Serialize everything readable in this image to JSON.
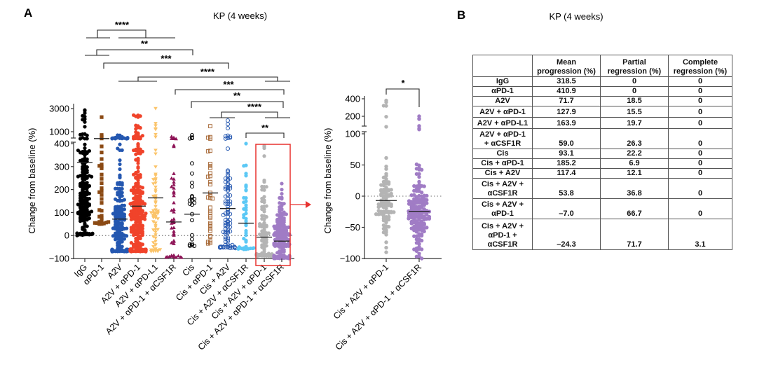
{
  "panel_a": {
    "letter": "A",
    "title": "KP (4 weeks)"
  },
  "panel_b": {
    "letter": "B",
    "title": "KP (4 weeks)"
  },
  "chart_data": [
    {
      "type": "scatter",
      "subtype": "dot-plot with mean bars, broken y-axis",
      "title": "KP (4 weeks)",
      "xlabel": "",
      "ylabel": "Change from baseline (%)",
      "y_ticks_upper": [
        "3000",
        "1000"
      ],
      "y_ticks_lower": [
        "400",
        "300",
        "200",
        "100",
        "0",
        "−100"
      ],
      "y_tick_values_upper": [
        3000,
        1000
      ],
      "y_tick_values_lower": [
        400,
        300,
        200,
        100,
        0,
        -100
      ],
      "ylim": [
        -100,
        3000
      ],
      "y_break": [
        400,
        1000
      ],
      "reference_line": 0,
      "categories": [
        "IgG",
        "αPD-1",
        "A2V",
        "A2V + αPD-1",
        "A2V + αPD-L1",
        "A2V + αPD-1 + αCSF1R",
        "Cis",
        "Cis + αPD-1",
        "Cis + A2V",
        "Cis  + A2V + αCSF1R",
        "Cis + A2V + αPD-1",
        "Cis + A2V + αPD-1 + αCSF1R"
      ],
      "series": [
        {
          "name": "IgG",
          "color": "#000000",
          "marker": "circle-filled",
          "mean": 318.5,
          "min": 0,
          "max": 2800,
          "n_approx": 160
        },
        {
          "name": "αPD-1",
          "color": "#8B4A14",
          "marker": "square-filled",
          "mean": 410.9,
          "min": 50,
          "max": 2000,
          "n_approx": 30
        },
        {
          "name": "A2V",
          "color": "#2457B0",
          "marker": "circle-filled",
          "mean": 71.7,
          "min": -70,
          "max": 700,
          "n_approx": 170
        },
        {
          "name": "A2V + αPD-1",
          "color": "#F0432A",
          "marker": "circle-filled",
          "mean": 127.9,
          "min": -70,
          "max": 2200,
          "n_approx": 220
        },
        {
          "name": "A2V + αPD-L1",
          "color": "#FBC46A",
          "marker": "triangle-down-filled",
          "mean": 163.9,
          "min": -70,
          "max": 3000,
          "n_approx": 60
        },
        {
          "name": "A2V + αPD-1 + αCSF1R",
          "color": "#8E1457",
          "marker": "triangle-up-filled",
          "mean": 59.0,
          "min": -95,
          "max": 600,
          "n_approx": 40
        },
        {
          "name": "Cis",
          "color": "#000000",
          "marker": "circle-open",
          "mean": 93.1,
          "min": -45,
          "max": 700,
          "n_approx": 20
        },
        {
          "name": "Cis + αPD-1",
          "color": "#A86A38",
          "marker": "square-open",
          "mean": 185.2,
          "min": -35,
          "max": 1300,
          "n_approx": 30
        },
        {
          "name": "Cis + A2V",
          "color": "#2457B0",
          "marker": "circle-open",
          "mean": 117.4,
          "min": -55,
          "max": 1700,
          "n_approx": 80
        },
        {
          "name": "Cis + A2V + αCSF1R",
          "color": "#5BC8F5",
          "marker": "circle-filled",
          "mean": 53.8,
          "min": -60,
          "max": 400,
          "n_approx": 40
        },
        {
          "name": "Cis + A2V + αPD-1",
          "color": "#B4B4B4",
          "marker": "circle-filled",
          "mean": -7.0,
          "min": -90,
          "max": 380,
          "n_approx": 90
        },
        {
          "name": "Cis + A2V + αPD-1 + αCSF1R",
          "color": "#A07CC5",
          "marker": "circle-filled",
          "mean": -24.3,
          "min": -100,
          "max": 200,
          "n_approx": 150
        }
      ],
      "significance": [
        {
          "label": "****",
          "groups": [
            [
              "IgG",
              "αPD-1"
            ],
            [
              "A2V",
              "A2V + αPD-1",
              "A2V + αPD-L1"
            ]
          ]
        },
        {
          "label": "**",
          "groups": [
            [
              "IgG",
              "αPD-1"
            ],
            [
              "Cis"
            ]
          ]
        },
        {
          "label": "***",
          "groups": [
            [
              "αPD-1"
            ],
            [
              "Cis + αPD-1"
            ]
          ]
        },
        {
          "label": "****",
          "groups": [
            [
              "A2V",
              "A2V + αPD-1",
              "A2V + αPD-L1"
            ],
            [
              "Cis + A2V + αPD-1",
              "Cis + A2V + αPD-1 + αCSF1R"
            ]
          ]
        },
        {
          "label": "***",
          "groups": [
            [
              "A2V + αPD-1 + αCSF1R"
            ],
            [
              "Cis + A2V + αPD-1 + αCSF1R"
            ]
          ]
        },
        {
          "label": "**",
          "groups": [
            [
              "Cis"
            ],
            [
              "Cis + A2V + αPD-1 + αCSF1R"
            ]
          ]
        },
        {
          "label": "****",
          "groups": [
            [
              "Cis + αPD-1",
              "Cis + A2V"
            ],
            [
              "Cis + A2V + αPD-1",
              "Cis + A2V + αPD-1 + αCSF1R"
            ]
          ]
        },
        {
          "label": "**",
          "groups": [
            [
              "Cis + A2V + αCSF1R"
            ],
            [
              "Cis + A2V + αPD-1 + αCSF1R"
            ]
          ]
        }
      ],
      "highlight_box": [
        "Cis + A2V + αPD-1",
        "Cis + A2V + αPD-1 + αCSF1R"
      ],
      "grid": false,
      "legend": "none"
    },
    {
      "type": "scatter",
      "subtype": "dot-plot with mean bars, broken y-axis (zoom of highlighted groups)",
      "title": "",
      "xlabel": "",
      "ylabel": "Change from baseline (%)",
      "y_ticks_upper": [
        "400",
        "200"
      ],
      "y_ticks_lower": [
        "100",
        "50",
        "0",
        "−50",
        "−100"
      ],
      "y_tick_values_upper": [
        400,
        200
      ],
      "y_tick_values_lower": [
        100,
        50,
        0,
        -50,
        -100
      ],
      "ylim": [
        -100,
        400
      ],
      "y_break": [
        100,
        200
      ],
      "reference_line": 0,
      "categories": [
        "Cis + A2V + αPD-1",
        "Cis + A2V + αPD-1 + αCSF1R"
      ],
      "series": [
        {
          "name": "Cis + A2V + αPD-1",
          "color": "#B4B4B4",
          "marker": "circle-filled",
          "mean": -7.0,
          "min": -90,
          "max": 380,
          "n_approx": 90
        },
        {
          "name": "Cis + A2V + αPD-1 + αCSF1R",
          "color": "#A07CC5",
          "marker": "circle-filled",
          "mean": -24.3,
          "min": -100,
          "max": 200,
          "n_approx": 150
        }
      ],
      "significance": [
        {
          "label": "*",
          "groups": [
            [
              "Cis + A2V + αPD-1"
            ],
            [
              "Cis + A2V + αPD-1 + αCSF1R"
            ]
          ]
        }
      ],
      "grid": false,
      "legend": "none"
    },
    {
      "type": "table",
      "title": "KP (4 weeks)",
      "columns": [
        "",
        "Mean progression (%)",
        "Partial regression (%)",
        "Complete regression (%)"
      ],
      "column_lines": [
        [
          ""
        ],
        [
          "Mean",
          "progression (%)"
        ],
        [
          "Partial",
          "regression (%)"
        ],
        [
          "Complete",
          "regression (%)"
        ]
      ],
      "rows": [
        {
          "label_lines": [
            "IgG"
          ],
          "mean": "318.5",
          "partial": "0",
          "complete": "0"
        },
        {
          "label_lines": [
            "αPD-1"
          ],
          "mean": "410.9",
          "partial": "0",
          "complete": "0"
        },
        {
          "label_lines": [
            "A2V"
          ],
          "mean": "71.7",
          "partial": "18.5",
          "complete": "0"
        },
        {
          "label_lines": [
            "A2V + αPD-1"
          ],
          "mean": "127.9",
          "partial": "15.5",
          "complete": "0"
        },
        {
          "label_lines": [
            "A2V + αPD-L1"
          ],
          "mean": "163.9",
          "partial": "19.7",
          "complete": "0"
        },
        {
          "label_lines": [
            "A2V + αPD-1",
            "+ αCSF1R"
          ],
          "mean": "59.0",
          "partial": "26.3",
          "complete": "0"
        },
        {
          "label_lines": [
            "Cis"
          ],
          "mean": "93.1",
          "partial": "22.2",
          "complete": "0"
        },
        {
          "label_lines": [
            "Cis + αPD-1"
          ],
          "mean": "185.2",
          "partial": "6.9",
          "complete": "0"
        },
        {
          "label_lines": [
            "Cis + A2V"
          ],
          "mean": "117.4",
          "partial": "12.1",
          "complete": "0"
        },
        {
          "label_lines": [
            "Cis + A2V +",
            "αCSF1R"
          ],
          "mean": "53.8",
          "partial": "36.8",
          "complete": "0"
        },
        {
          "label_lines": [
            "Cis + A2V +",
            "αPD-1"
          ],
          "mean": "–7.0",
          "partial": "66.7",
          "complete": "0"
        },
        {
          "label_lines": [
            "Cis + A2V +",
            "αPD-1 +",
            "αCSF1R"
          ],
          "mean": "–24.3",
          "partial": "71.7",
          "complete": "3.1"
        }
      ]
    }
  ]
}
